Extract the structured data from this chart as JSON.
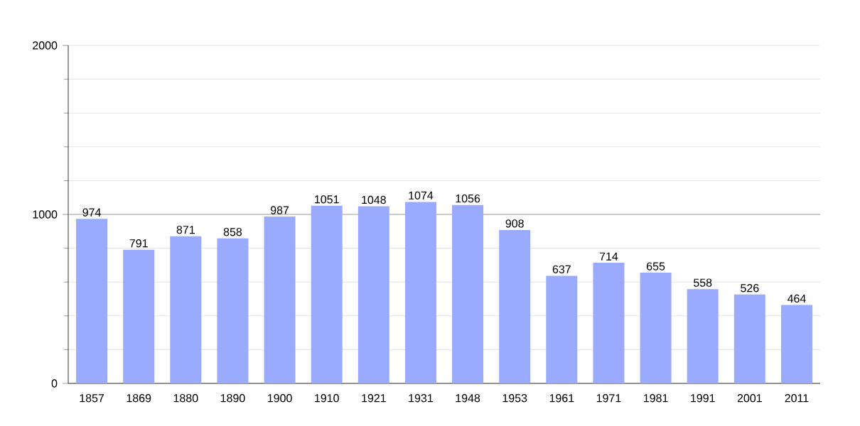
{
  "chart_data": {
    "type": "bar",
    "categories": [
      "1857",
      "1869",
      "1880",
      "1890",
      "1900",
      "1910",
      "1921",
      "1931",
      "1948",
      "1953",
      "1961",
      "1971",
      "1981",
      "1991",
      "2001",
      "2011"
    ],
    "values": [
      974,
      791,
      871,
      858,
      987,
      1051,
      1048,
      1074,
      1056,
      908,
      637,
      714,
      655,
      558,
      526,
      464
    ],
    "color": "#99aaff",
    "ylim": [
      0,
      2000
    ],
    "yticks": [
      0,
      {
        "value": 200,
        "label": null
      },
      {
        "value": 400,
        "label": null
      },
      {
        "value": 600,
        "label": null
      },
      {
        "value": 800,
        "label": null
      },
      1000,
      {
        "value": 1200,
        "label": null
      },
      {
        "value": 1400,
        "label": null
      },
      {
        "value": 1600,
        "label": null
      },
      {
        "value": 1800,
        "label": null
      },
      2000
    ],
    "grid": true,
    "data_labels": true,
    "ref_lines": [
      {
        "axis": "y",
        "value": 1000,
        "color": "#a6a6a6"
      }
    ]
  }
}
